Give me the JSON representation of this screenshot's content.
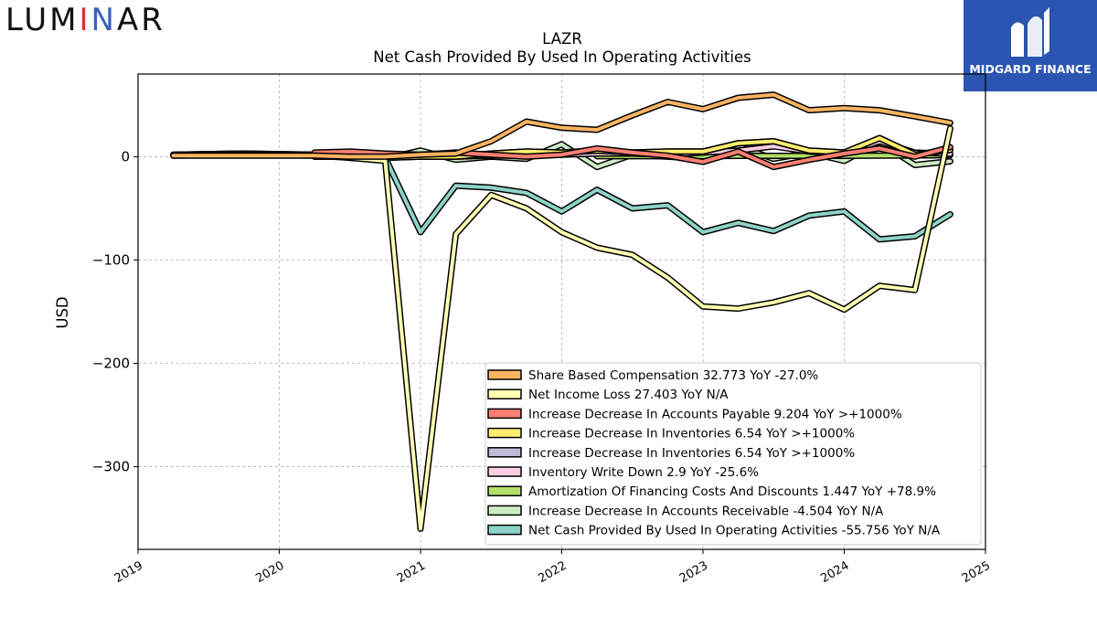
{
  "brand_left": {
    "part1": "LUM",
    "part2": "I",
    "part3": "N",
    "part4": "AR",
    "accent_red": "#e0303a",
    "accent_green": "#3a9a52",
    "accent_blue": "#3a60c0"
  },
  "brand_right": {
    "name": "MIDGARD FINANCE",
    "background": "#2a55b0"
  },
  "chart_data": {
    "type": "line",
    "title": "LAZR",
    "subtitle": "Net Cash Provided By Used In Operating Activities",
    "xlabel": "",
    "ylabel": "USD",
    "xlim": [
      2019.0,
      2025.0
    ],
    "ylim": [
      -380,
      80
    ],
    "xticks": [
      "2019",
      "2020",
      "2021",
      "2022",
      "2023",
      "2024",
      "2025"
    ],
    "yticks": [
      0,
      -100,
      -200,
      -300
    ],
    "ytick_labels": [
      "0",
      "−100",
      "−200",
      "−300"
    ],
    "grid": true,
    "legend_position": "lower-right",
    "series": [
      {
        "name": "Net Cash Provided By Used In Operating Activities",
        "legend": "Net Cash Provided By Used In Operating Activities  -55.756 YoY N/A",
        "color": "#8dd3c7",
        "x": [
          2019.25,
          2019.75,
          2020.25,
          2020.5,
          2020.75,
          2021.0,
          2021.25,
          2021.5,
          2021.75,
          2022.0,
          2022.25,
          2022.5,
          2022.75,
          2023.0,
          2023.25,
          2023.5,
          2023.75,
          2024.0,
          2024.25,
          2024.5,
          2024.75
        ],
        "y": [
          2,
          3,
          2,
          -1,
          -1,
          -73,
          -28,
          -30,
          -35,
          -53,
          -32,
          -50,
          -47,
          -73,
          -64,
          -72,
          -57,
          -53,
          -80,
          -77,
          -55.756
        ]
      },
      {
        "name": "Increase Decrease In Accounts Receivable",
        "legend": "Increase Decrease In Accounts Receivable  -4.504 YoY N/A",
        "color": "#ccebc5",
        "x": [
          2019.25,
          2019.75,
          2020.25,
          2020.5,
          2020.75,
          2021.0,
          2021.25,
          2021.5,
          2021.75,
          2022.0,
          2022.25,
          2022.5,
          2022.75,
          2023.0,
          2023.25,
          2023.5,
          2023.75,
          2024.0,
          2024.25,
          2024.5,
          2024.75
        ],
        "y": [
          2,
          3,
          2,
          -1,
          -2,
          6,
          -3,
          0,
          -2,
          12,
          -10,
          2,
          0,
          -2,
          10,
          -2,
          4,
          -4,
          14,
          -8,
          -4.504
        ]
      },
      {
        "name": "Amortization Of Financing Costs And Discounts",
        "legend": "Amortization Of Financing Costs And Discounts  1.447 YoY +78.9%",
        "color": "#b3de69",
        "x": [
          2022.25,
          2022.5,
          2022.75,
          2023.0,
          2023.25,
          2023.5,
          2023.75,
          2024.0,
          2024.25,
          2024.5,
          2024.75
        ],
        "y": [
          0.5,
          0.5,
          0.5,
          0.5,
          0.8,
          0.8,
          0.8,
          0.8,
          1.0,
          1.2,
          1.447
        ]
      },
      {
        "name": "Inventory Write Down",
        "legend": "Inventory Write Down  2.9 YoY -25.6%",
        "color": "#fccde5",
        "x": [
          2021.0,
          2021.25,
          2021.5,
          2021.75,
          2022.0,
          2022.25,
          2022.5,
          2022.75,
          2023.0,
          2023.25,
          2023.5,
          2023.75,
          2024.0,
          2024.25,
          2024.5,
          2024.75
        ],
        "y": [
          0,
          0,
          1,
          1,
          2,
          3,
          3,
          2,
          4,
          6,
          10,
          5,
          3,
          15,
          4,
          2.9
        ]
      },
      {
        "name": "Increase Decrease In Inventories",
        "legend": "Increase Decrease In Inventories  6.54 YoY >+1000%",
        "color": "#bebada",
        "x": [
          2020.25,
          2020.5,
          2020.75,
          2021.0,
          2021.25,
          2021.5,
          2021.75,
          2022.0,
          2022.25,
          2022.5,
          2022.75,
          2023.0,
          2023.25,
          2023.5,
          2023.75,
          2024.0,
          2024.25,
          2024.5,
          2024.75
        ],
        "y": [
          0,
          0,
          -1,
          0,
          0,
          3,
          5,
          4,
          6,
          4,
          5,
          5,
          13,
          15,
          6,
          4,
          18,
          2,
          6.54
        ]
      },
      {
        "name": "Increase Decrease In Inventories",
        "legend": "Increase Decrease In Inventories  6.54 YoY >+1000%",
        "color": "#ffed6f",
        "x": [
          2020.25,
          2020.5,
          2020.75,
          2021.0,
          2021.25,
          2021.5,
          2021.75,
          2022.0,
          2022.25,
          2022.5,
          2022.75,
          2023.0,
          2023.25,
          2023.5,
          2023.75,
          2024.0,
          2024.25,
          2024.5,
          2024.75
        ],
        "y": [
          0,
          0,
          -1,
          0,
          0,
          3,
          5,
          4,
          6,
          4,
          5,
          5,
          13,
          15,
          6,
          4,
          18,
          2,
          6.54
        ]
      },
      {
        "name": "Increase Decrease In Accounts Payable",
        "legend": "Increase Decrease In Accounts Payable  9.204 YoY >+1000%",
        "color": "#fb8072",
        "x": [
          2020.25,
          2020.5,
          2020.75,
          2021.0,
          2021.25,
          2021.5,
          2021.75,
          2022.0,
          2022.25,
          2022.5,
          2022.75,
          2023.0,
          2023.25,
          2023.5,
          2023.75,
          2024.0,
          2024.25,
          2024.5,
          2024.75
        ],
        "y": [
          4,
          5,
          3,
          2,
          4,
          2,
          0,
          2,
          8,
          4,
          1,
          -5,
          5,
          -10,
          -3,
          3,
          8,
          0,
          9.204
        ]
      },
      {
        "name": "Net Income Loss",
        "legend": "Net Income Loss  27.403 YoY N/A",
        "color": "#ffffb3",
        "x": [
          2019.25,
          2019.75,
          2020.25,
          2020.5,
          2020.75,
          2021.0,
          2021.25,
          2021.5,
          2021.75,
          2022.0,
          2022.25,
          2022.5,
          2022.75,
          2023.0,
          2023.25,
          2023.5,
          2023.75,
          2024.0,
          2024.25,
          2024.5,
          2024.75
        ],
        "y": [
          1,
          2,
          1,
          -1,
          -4,
          -360,
          -75,
          -37,
          -50,
          -73,
          -88,
          -95,
          -117,
          -145,
          -147,
          -141,
          -132,
          -148,
          -125,
          -129,
          27.403
        ]
      },
      {
        "name": "Share Based Compensation",
        "legend": "Share Based Compensation  32.773 YoY -27.0%",
        "color": "#fdb462",
        "x": [
          2019.25,
          2019.75,
          2020.25,
          2020.5,
          2020.75,
          2021.0,
          2021.25,
          2021.5,
          2021.75,
          2022.0,
          2022.25,
          2022.5,
          2022.75,
          2023.0,
          2023.25,
          2023.5,
          2023.75,
          2024.0,
          2024.25,
          2024.5,
          2024.75
        ],
        "y": [
          1,
          1,
          1,
          0,
          0,
          2,
          3,
          15,
          34,
          28,
          26,
          40,
          53,
          46,
          57,
          60,
          45,
          47,
          45,
          39,
          32.773
        ]
      }
    ]
  }
}
